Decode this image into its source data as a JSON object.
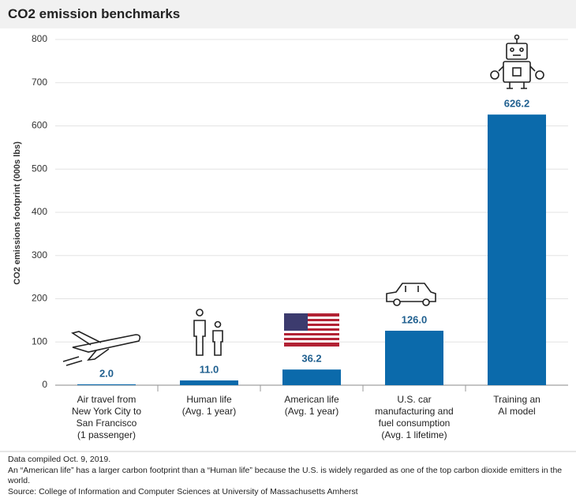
{
  "chart_data": {
    "type": "bar",
    "title": "CO2 emission benchmarks",
    "y_label": "CO2 emissions footprint (000s lbs)",
    "categories": [
      "Air travel from\nNew York City to\nSan Francisco\n(1 passenger)",
      "Human life\n(Avg. 1 year)",
      "American life\n(Avg. 1 year)",
      "U.S. car\nmanufacturing and\nfuel consumption\n(Avg. 1 lifetime)",
      "Training an\nAI model"
    ],
    "values": [
      2.0,
      11.0,
      36.2,
      126.0,
      626.2
    ],
    "value_labels": [
      "2.0",
      "11.0",
      "36.2",
      "126.0",
      "626.2"
    ],
    "color": "#0b6aab",
    "ylim": [
      0,
      800
    ],
    "yticks": [
      0,
      100,
      200,
      300,
      400,
      500,
      600,
      700,
      800
    ],
    "grid": true,
    "notes": [
      "Data compiled Oct. 9, 2019.",
      "An “American life” has a larger carbon footprint than a “Human life” because the U.S. is widely regarded as one of the top carbon dioxide emitters in the world.",
      "Source: College of Information and Computer Sciences at University of Massachusetts Amherst"
    ]
  }
}
